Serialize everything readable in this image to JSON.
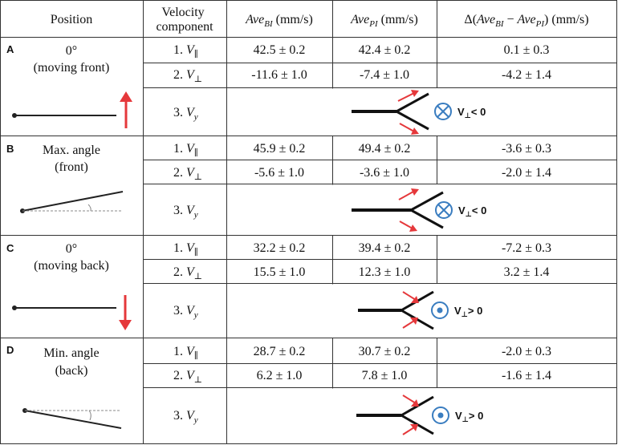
{
  "header": {
    "position": "Position",
    "velocity_component_line1": "Velocity",
    "velocity_component_line2": "component",
    "ave_bi": "Ave",
    "ave_bi_sub": "BI",
    "ave_pi": "Ave",
    "ave_pi_sub": "PI",
    "unit": "(mm/s)",
    "delta_prefix": "Δ(",
    "delta_minus": " − ",
    "delta_suffix": ") (mm/s)"
  },
  "component_labels": {
    "c1_num": "1. ",
    "c1_sym": "V",
    "c1_sub": "∥",
    "c2_num": "2. ",
    "c2_sym": "V",
    "c2_sub": "⊥",
    "c3_num": "3. ",
    "c3_sym": "V",
    "c3_sub": "y"
  },
  "sections": [
    {
      "letter": "A",
      "title_line1": "0°",
      "title_line2": "(moving front)",
      "rows": [
        {
          "bi": "42.5 ± 0.2",
          "pi": "42.4 ± 0.2",
          "delta": "0.1 ± 0.3"
        },
        {
          "bi": "-11.6 ± 1.0",
          "pi": "-7.4 ± 1.0",
          "delta": "-4.2 ± 1.4"
        }
      ],
      "vy_sign": "< 0",
      "arrow_icon": "arrow-up-icon",
      "vy_icon": "into-page-icon"
    },
    {
      "letter": "B",
      "title_line1": "Max. angle",
      "title_line2": "(front)",
      "rows": [
        {
          "bi": "45.9 ± 0.2",
          "pi": "49.4 ± 0.2",
          "delta": "-3.6 ± 0.3"
        },
        {
          "bi": "-5.6 ± 1.0",
          "pi": "-3.6 ± 1.0",
          "delta": "-2.0 ± 1.4"
        }
      ],
      "vy_sign": "< 0",
      "vy_icon": "into-page-icon"
    },
    {
      "letter": "C",
      "title_line1": "0°",
      "title_line2": "(moving back)",
      "rows": [
        {
          "bi": "32.2 ± 0.2",
          "pi": "39.4 ± 0.2",
          "delta": "-7.2 ± 0.3"
        },
        {
          "bi": "15.5 ± 1.0",
          "pi": "12.3 ± 1.0",
          "delta": "3.2 ± 1.4"
        }
      ],
      "vy_sign": "> 0",
      "arrow_icon": "arrow-down-icon",
      "vy_icon": "out-of-page-icon"
    },
    {
      "letter": "D",
      "title_line1": "Min. angle",
      "title_line2": "(back)",
      "rows": [
        {
          "bi": "28.7 ± 0.2",
          "pi": "30.7 ± 0.2",
          "delta": "-2.0 ± 0.3"
        },
        {
          "bi": "6.2 ± 1.0",
          "pi": "7.8 ± 1.0",
          "delta": "-1.6 ± 1.4"
        }
      ],
      "vy_sign": "> 0",
      "vy_icon": "out-of-page-icon"
    }
  ],
  "colors": {
    "arrow_red": "#e5383b",
    "symbol_blue": "#3a7dc0",
    "line": "#222222",
    "grid": "#333333"
  }
}
